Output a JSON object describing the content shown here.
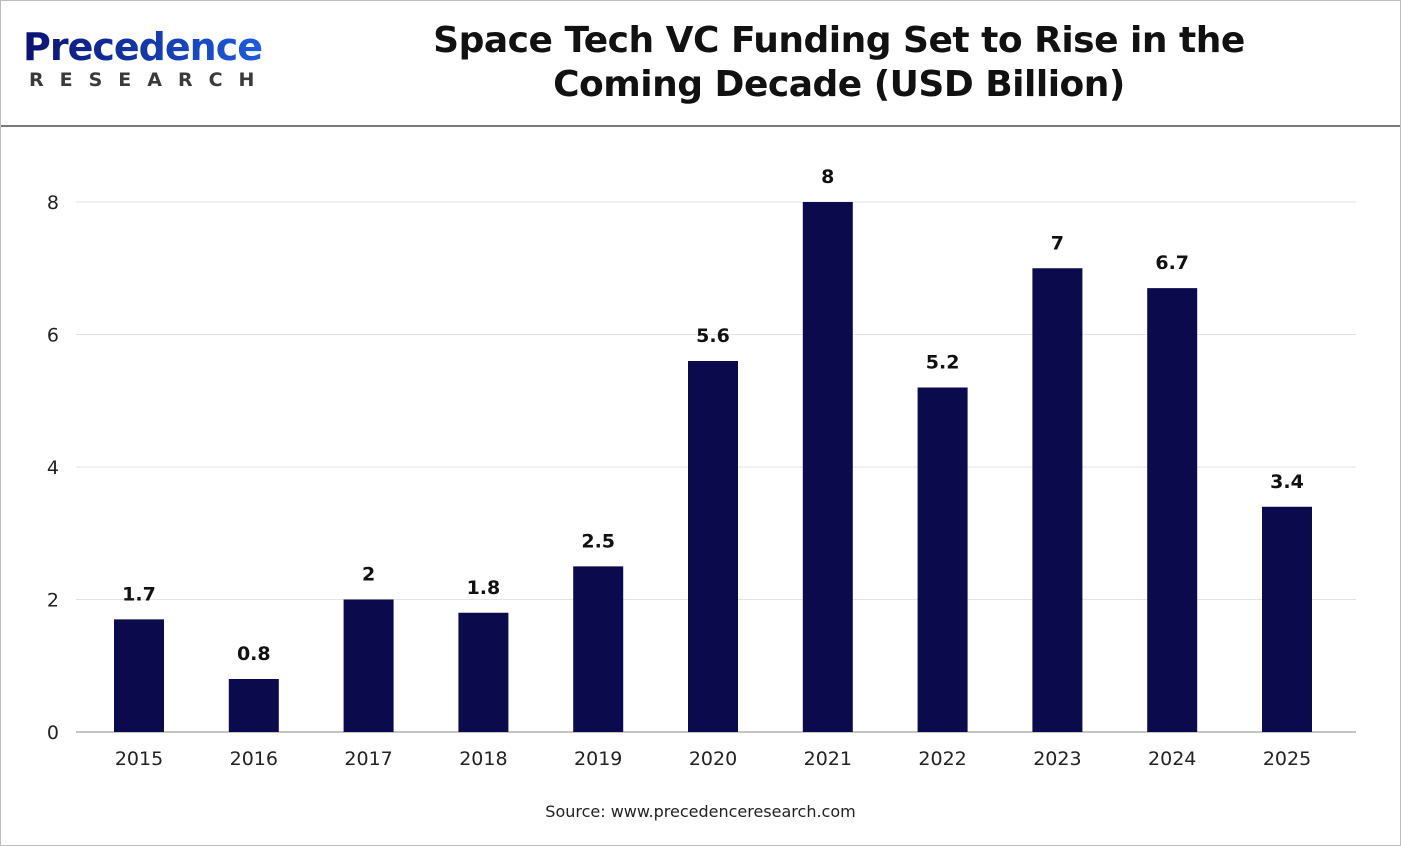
{
  "logo": {
    "main": "Precedence",
    "sub": "RESEARCH"
  },
  "chart_data": {
    "type": "bar",
    "title": "Space Tech VC Funding Set to Rise in the Coming Decade (USD Billion)",
    "categories": [
      "2015",
      "2016",
      "2017",
      "2018",
      "2019",
      "2020",
      "2021",
      "2022",
      "2023",
      "2024",
      "2025"
    ],
    "values": [
      1.7,
      0.8,
      2,
      1.8,
      2.5,
      5.6,
      8,
      5.2,
      7,
      6.7,
      3.4
    ],
    "data_labels": [
      "1.7",
      "0.8",
      "2",
      "1.8",
      "2.5",
      "5.6",
      "8",
      "5.2",
      "7",
      "6.7",
      "3.4"
    ],
    "xlabel": "",
    "ylabel": "",
    "ylim": [
      0,
      8
    ],
    "yticks": [
      "0",
      "2",
      "4",
      "6",
      "8"
    ],
    "grid": true,
    "bar_color": "#0a0a4d"
  },
  "source": "Source: www.precedenceresearch.com"
}
